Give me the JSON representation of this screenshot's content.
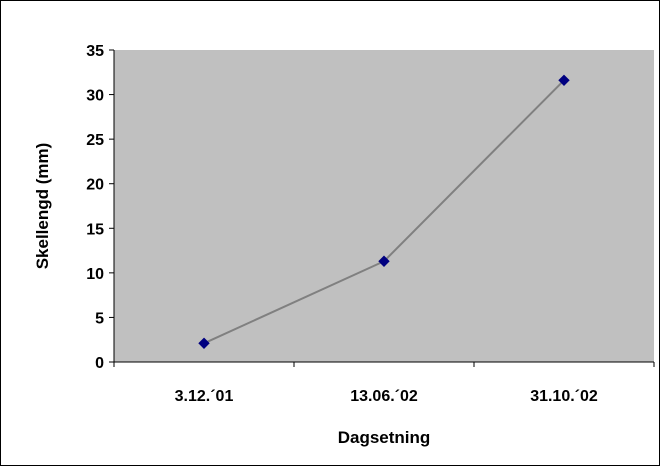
{
  "chart_data": {
    "type": "line",
    "categories": [
      "3.12.´01",
      "13.06.´02",
      "31.10.´02"
    ],
    "series": [
      {
        "values": [
          2.1,
          11.3,
          31.6
        ]
      }
    ],
    "title": "",
    "xlabel": "Dagsetning",
    "ylabel": "Skellengd (mm)",
    "ylim": [
      0,
      35
    ],
    "yticks": [
      0,
      5,
      10,
      15,
      20,
      25,
      30,
      35
    ],
    "grid": false,
    "legend": "none",
    "colors": {
      "plot_background": "#c0c0c0",
      "line": "#808080",
      "marker_fill": "#000080",
      "marker_stroke": "#000080"
    }
  }
}
